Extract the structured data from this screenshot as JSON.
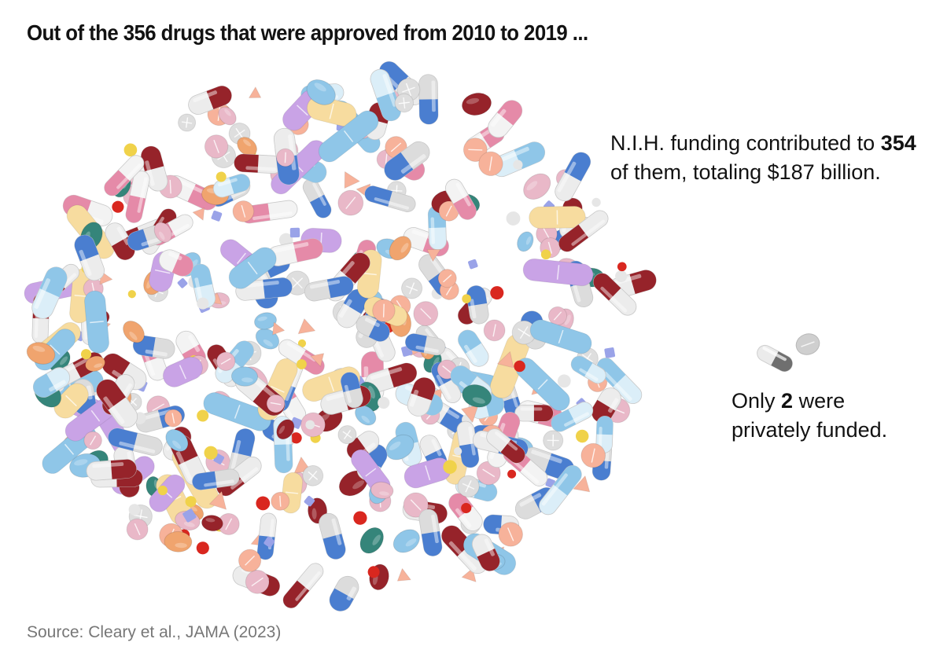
{
  "title": "Out of the 356 drugs that were approved from 2010 to 2019 ...",
  "nih": {
    "pre": "N.I.H. funding contributed to ",
    "count": "354",
    "post": " of them, totaling $187 billion."
  },
  "private": {
    "pre": "Only ",
    "count": "2",
    "post": " were privately funded."
  },
  "source": "Source: Cleary et al., JAMA (2023)",
  "colors": {
    "dark_red": "#96232a",
    "blue": "#4a7ed0",
    "sky": "#8fc6e8",
    "lavender": "#c9a3e6",
    "yellow": "#f7dc9f",
    "pink": "#e9b8c8",
    "salmon": "#f7b29a",
    "orange": "#f0a46e",
    "teal": "#35857a",
    "red_dot": "#d9271f",
    "private_pill": "#7a7a7a"
  }
}
